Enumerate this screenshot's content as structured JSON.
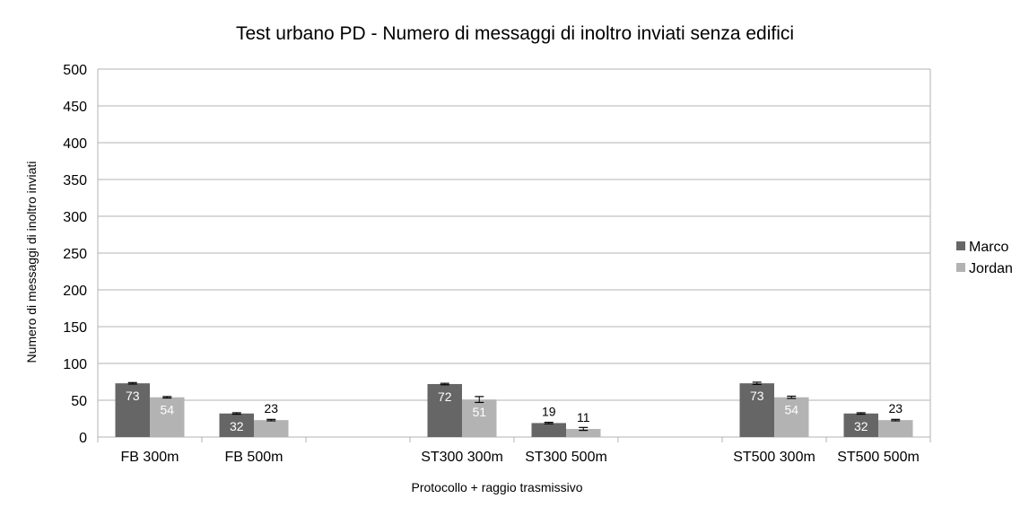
{
  "chart_data": {
    "type": "bar",
    "title": "Test urbano PD - Numero di messaggi di inoltro inviati senza edifici",
    "xlabel": "Protocollo + raggio trasmissivo",
    "ylabel": "Numero di messaggi di inoltro inviati",
    "ylim": [
      0,
      500
    ],
    "yticks": [
      0,
      50,
      100,
      150,
      200,
      250,
      300,
      350,
      400,
      450,
      500
    ],
    "grid": true,
    "legend_position": "right",
    "categories": [
      "FB 300m",
      "FB 500m",
      "",
      "ST300 300m",
      "ST300 500m",
      "",
      "ST500 300m",
      "ST500 500m"
    ],
    "series": [
      {
        "name": "Marco",
        "color": "#666666",
        "values": [
          73,
          32,
          null,
          72,
          19,
          null,
          73,
          32
        ],
        "error": [
          1,
          1,
          null,
          1,
          1,
          null,
          1.5,
          1
        ]
      },
      {
        "name": "Jordan",
        "color": "#b3b3b3",
        "values": [
          54,
          23,
          null,
          51,
          11,
          null,
          54,
          23
        ],
        "error": [
          1,
          1,
          null,
          4,
          2,
          null,
          1.5,
          1
        ]
      }
    ],
    "data_labels": {
      "marco": [
        "73",
        "32",
        "",
        "72",
        "19",
        "",
        "73",
        "32"
      ],
      "jordan": [
        "54",
        "23",
        "",
        "51",
        "11",
        "",
        "54",
        "23"
      ]
    }
  }
}
